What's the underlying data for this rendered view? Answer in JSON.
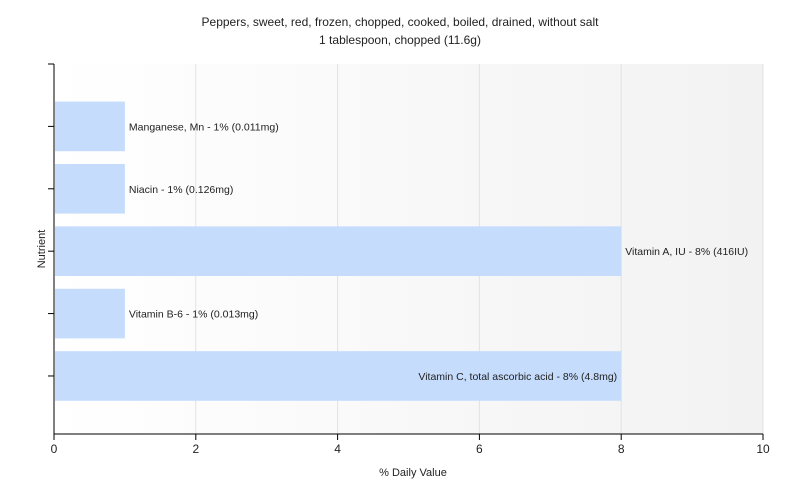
{
  "chart_data": {
    "type": "bar",
    "orientation": "horizontal",
    "title": "Peppers, sweet, red, frozen, chopped, cooked, boiled, drained, without salt",
    "subtitle": "1 tablespoon, chopped (11.6g)",
    "xlabel": "% Daily Value",
    "ylabel": "Nutrient",
    "xlim": [
      0,
      10
    ],
    "xticks": [
      0,
      2,
      4,
      6,
      8,
      10
    ],
    "grid": true,
    "categories": [
      "Manganese, Mn",
      "Niacin",
      "Vitamin A, IU",
      "Vitamin B-6",
      "Vitamin C, total ascorbic acid"
    ],
    "values": [
      1,
      1,
      8,
      1,
      8
    ],
    "amounts": [
      "0.011mg",
      "0.126mg",
      "416IU",
      "0.013mg",
      "4.8mg"
    ],
    "bar_labels": [
      "Manganese, Mn - 1% (0.011mg)",
      "Niacin - 1% (0.126mg)",
      "Vitamin A, IU - 8% (416IU)",
      "Vitamin B-6 - 1% (0.013mg)",
      "Vitamin C, total ascorbic acid - 8% (4.8mg)"
    ],
    "colors": {
      "bar": "#c5dcfd",
      "grid": "#e2e2e2",
      "axis": "#000000",
      "text": "#222222"
    }
  }
}
